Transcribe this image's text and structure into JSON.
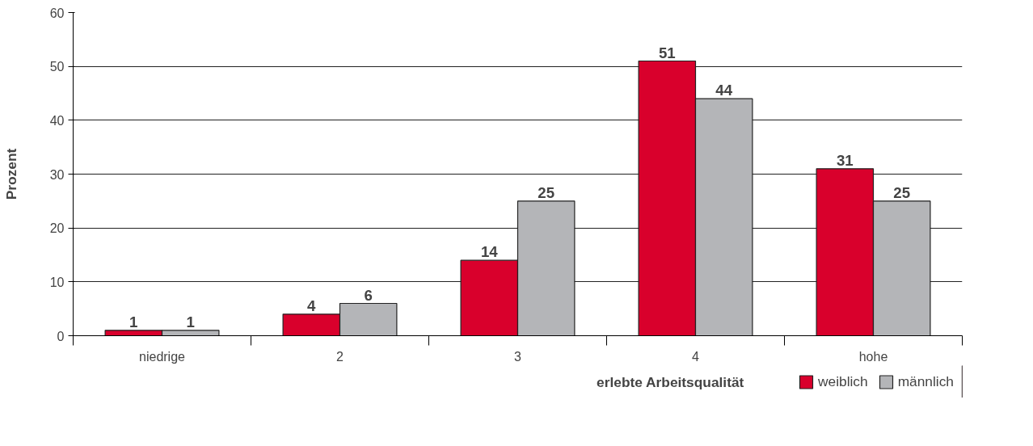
{
  "chart_data": {
    "type": "bar",
    "xlabel": "erlebte Arbeitsqualität",
    "ylabel": "Prozent",
    "categories": [
      "niedrige",
      "2",
      "3",
      "4",
      "hohe"
    ],
    "series": [
      {
        "name": "weiblich",
        "color": "#d9002c",
        "values": [
          1,
          4,
          14,
          51,
          31
        ]
      },
      {
        "name": "männlich",
        "color": "#b4b5b8",
        "values": [
          1,
          6,
          25,
          44,
          25
        ]
      }
    ],
    "ylim": [
      0,
      60
    ],
    "yticks": [
      0,
      10,
      20,
      30,
      40,
      50,
      60
    ],
    "grid": "y",
    "legend": "bottom right",
    "data_labels": true
  }
}
